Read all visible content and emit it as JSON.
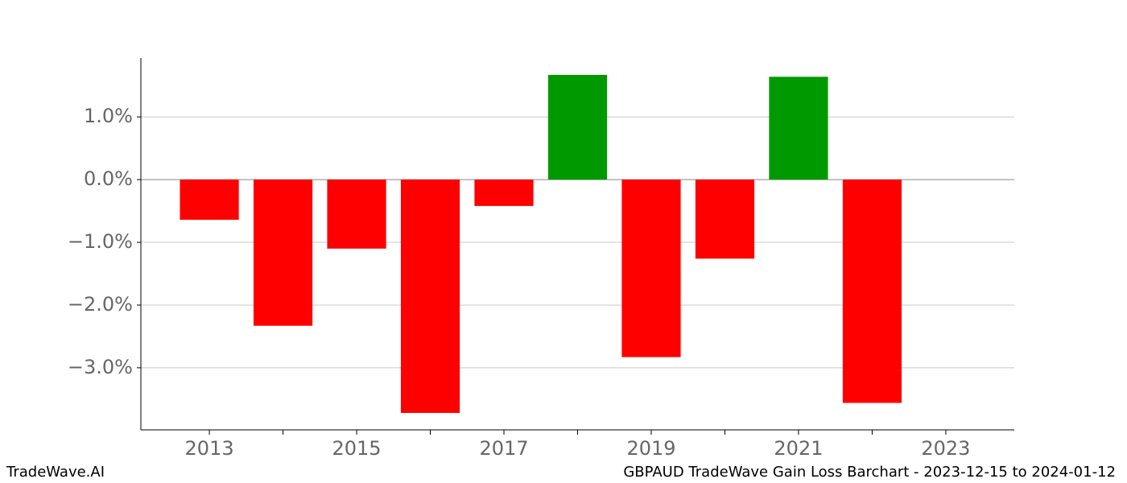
{
  "chart_data": {
    "type": "bar",
    "x": [
      2013,
      2014,
      2015,
      2016,
      2017,
      2018,
      2019,
      2020,
      2021,
      2022
    ],
    "values": [
      -0.64,
      -2.33,
      -1.1,
      -3.72,
      -0.42,
      1.67,
      -2.83,
      -1.26,
      1.64,
      -3.56
    ],
    "positive_color": "#009900",
    "negative_color": "#ff0000",
    "xlim": [
      2012.07,
      2023.93
    ],
    "xticks": [
      2013,
      2015,
      2017,
      2019,
      2021,
      2023
    ],
    "xminorticks": [
      2014,
      2016,
      2018,
      2020,
      2022
    ],
    "ylim": [
      -3.99,
      1.94
    ],
    "yticks": [
      {
        "value": -3,
        "label": "−3.0%"
      },
      {
        "value": -2,
        "label": "−2.0%"
      },
      {
        "value": -1,
        "label": "−1.0%"
      },
      {
        "value": 0,
        "label": "0.0%"
      },
      {
        "value": 1,
        "label": "1.0%"
      }
    ],
    "grid": true,
    "footer_left": "TradeWave.AI",
    "footer_right": "GBPAUD TradeWave Gain Loss Barchart - 2023-12-15 to 2024-01-12"
  }
}
